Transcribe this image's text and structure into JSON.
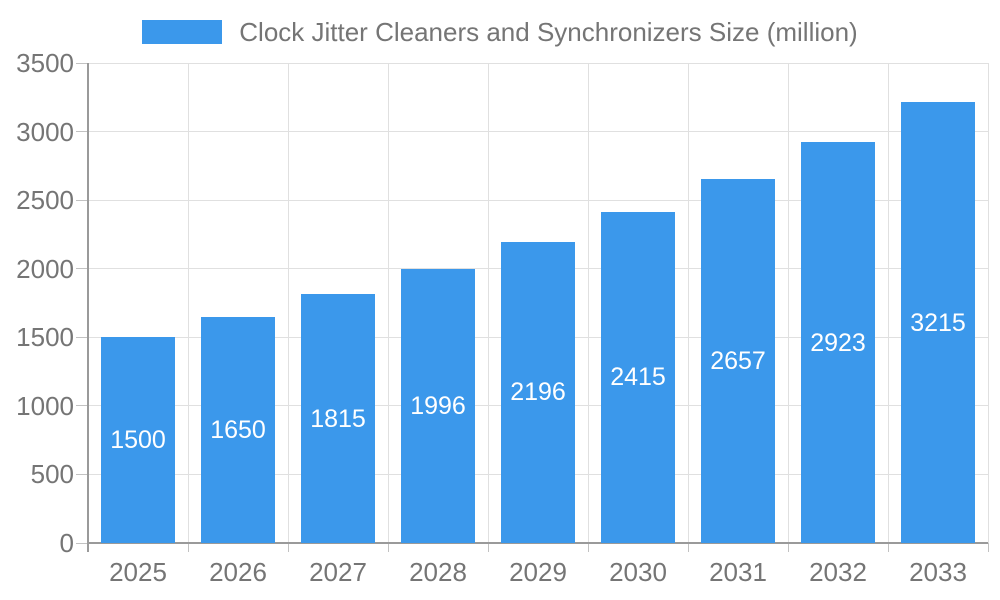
{
  "legend": {
    "label": "Clock Jitter Cleaners and Synchronizers Size (million)"
  },
  "chart_data": {
    "type": "bar",
    "title": "Clock Jitter Cleaners and Synchronizers Size (million)",
    "categories": [
      "2025",
      "2026",
      "2027",
      "2028",
      "2029",
      "2030",
      "2031",
      "2032",
      "2033"
    ],
    "values": [
      1500,
      1650,
      1815,
      1996,
      2196,
      2415,
      2657,
      2923,
      3215
    ],
    "xlabel": "",
    "ylabel": "",
    "ylim": [
      0,
      3500
    ],
    "ytick_step": 500,
    "yticks": [
      0,
      500,
      1000,
      1500,
      2000,
      2500,
      3000,
      3500
    ],
    "grid": true,
    "legend_position": "top",
    "value_labels": "inside-center",
    "colors": {
      "bar": "#3B98EB",
      "value_label": "#FFFFFF",
      "axis_text": "#757575",
      "gridline": "#E0E0E0",
      "axis_line": "#9A9A9A",
      "tick": "#C2C2C2",
      "background": "#FFFFFF"
    }
  }
}
